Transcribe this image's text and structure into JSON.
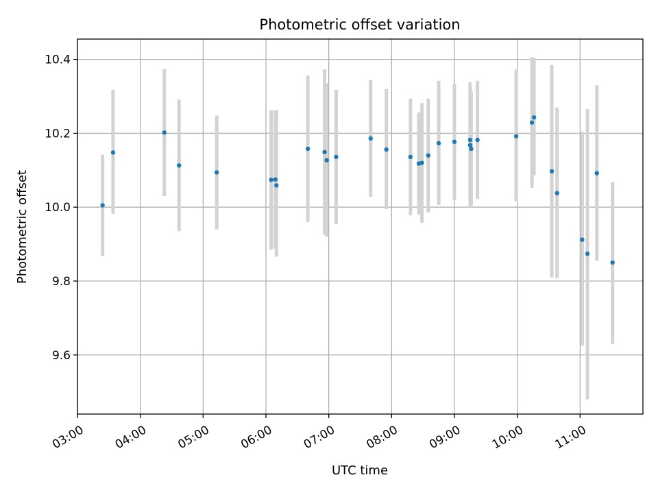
{
  "chart_data": {
    "type": "scatter",
    "title": "Photometric offset variation",
    "xlabel": "UTC time",
    "ylabel": "Photometric offset",
    "x_tick_labels": [
      "03:00",
      "04:00",
      "05:00",
      "06:00",
      "07:00",
      "08:00",
      "09:00",
      "10:00",
      "11:00"
    ],
    "y_tick_labels": [
      "9.6",
      "9.8",
      "10.0",
      "10.2",
      "10.4"
    ],
    "xlim": [
      "03:00",
      "12:00"
    ],
    "ylim": [
      9.44,
      10.455
    ],
    "grid": true,
    "colors": {
      "points": "#1f77b4",
      "errorbars": "#d3d3d3",
      "grid": "#b0b0b0"
    },
    "points": [
      {
        "x": "03:24",
        "y": 10.005,
        "ylow": 9.868,
        "yhigh": 10.142
      },
      {
        "x": "03:34",
        "y": 10.148,
        "ylow": 9.982,
        "yhigh": 10.318
      },
      {
        "x": "04:23",
        "y": 10.202,
        "ylow": 10.03,
        "yhigh": 10.374
      },
      {
        "x": "04:37",
        "y": 10.113,
        "ylow": 9.935,
        "yhigh": 10.291
      },
      {
        "x": "05:13",
        "y": 10.094,
        "ylow": 9.94,
        "yhigh": 10.248
      },
      {
        "x": "06:05",
        "y": 10.074,
        "ylow": 9.885,
        "yhigh": 10.262
      },
      {
        "x": "06:09",
        "y": 10.075,
        "ylow": 9.888,
        "yhigh": 10.262
      },
      {
        "x": "06:10",
        "y": 10.059,
        "ylow": 9.866,
        "yhigh": 10.262
      },
      {
        "x": "06:40",
        "y": 10.158,
        "ylow": 9.96,
        "yhigh": 10.356
      },
      {
        "x": "06:56",
        "y": 10.149,
        "ylow": 9.925,
        "yhigh": 10.373
      },
      {
        "x": "06:58",
        "y": 10.127,
        "ylow": 9.92,
        "yhigh": 10.335
      },
      {
        "x": "07:07",
        "y": 10.136,
        "ylow": 9.954,
        "yhigh": 10.318
      },
      {
        "x": "07:40",
        "y": 10.186,
        "ylow": 10.028,
        "yhigh": 10.344
      },
      {
        "x": "07:55",
        "y": 10.156,
        "ylow": 9.995,
        "yhigh": 10.32
      },
      {
        "x": "08:18",
        "y": 10.136,
        "ylow": 9.978,
        "yhigh": 10.294
      },
      {
        "x": "08:26",
        "y": 10.118,
        "ylow": 9.98,
        "yhigh": 10.256
      },
      {
        "x": "08:29",
        "y": 10.12,
        "ylow": 9.958,
        "yhigh": 10.282
      },
      {
        "x": "08:35",
        "y": 10.14,
        "ylow": 9.986,
        "yhigh": 10.294
      },
      {
        "x": "08:45",
        "y": 10.173,
        "ylow": 10.006,
        "yhigh": 10.342
      },
      {
        "x": "09:00",
        "y": 10.177,
        "ylow": 10.02,
        "yhigh": 10.334
      },
      {
        "x": "09:15",
        "y": 10.182,
        "ylow": 10.026,
        "yhigh": 10.338
      },
      {
        "x": "09:15",
        "y": 10.168,
        "ylow": 10.0,
        "yhigh": 10.336
      },
      {
        "x": "09:16",
        "y": 10.158,
        "ylow": 10.004,
        "yhigh": 10.312
      },
      {
        "x": "09:22",
        "y": 10.182,
        "ylow": 10.022,
        "yhigh": 10.342
      },
      {
        "x": "09:59",
        "y": 10.192,
        "ylow": 10.016,
        "yhigh": 10.372
      },
      {
        "x": "10:14",
        "y": 10.229,
        "ylow": 10.052,
        "yhigh": 10.406
      },
      {
        "x": "10:16",
        "y": 10.243,
        "ylow": 10.086,
        "yhigh": 10.404
      },
      {
        "x": "10:33",
        "y": 10.097,
        "ylow": 9.81,
        "yhigh": 10.385
      },
      {
        "x": "10:38",
        "y": 10.038,
        "ylow": 9.808,
        "yhigh": 10.27
      },
      {
        "x": "11:02",
        "y": 9.912,
        "ylow": 9.625,
        "yhigh": 10.205
      },
      {
        "x": "11:07",
        "y": 9.874,
        "ylow": 9.48,
        "yhigh": 10.266
      },
      {
        "x": "11:16",
        "y": 10.092,
        "ylow": 9.855,
        "yhigh": 10.33
      },
      {
        "x": "11:31",
        "y": 9.85,
        "ylow": 9.63,
        "yhigh": 10.068
      }
    ]
  }
}
